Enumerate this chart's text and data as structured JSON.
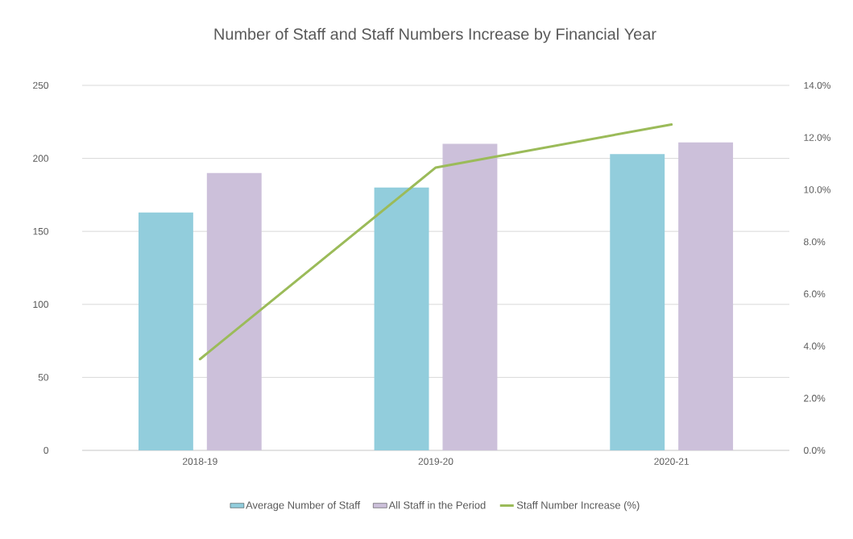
{
  "chart_data": {
    "type": "bar",
    "title": "Number of Staff and Staff Numbers Increase by Financial Year",
    "categories": [
      "2018-19",
      "2019-20",
      "2020-21"
    ],
    "series": [
      {
        "name": "Average Number of Staff",
        "color": "#92cddc",
        "values": [
          163,
          180,
          203
        ]
      },
      {
        "name": "All Staff in the Period",
        "color": "#ccc0da",
        "values": [
          190,
          210,
          211
        ]
      },
      {
        "name": "Staff Number Increase (%)",
        "type": "line",
        "axis": "y2",
        "color": "#9bbb59",
        "values": [
          3.5,
          10.85,
          12.5
        ]
      }
    ],
    "ylim": [
      0,
      250
    ],
    "yticks": [
      0,
      50,
      100,
      150,
      200,
      250
    ],
    "y2lim": [
      0,
      14
    ],
    "y2ticks": [
      {
        "value": 0,
        "label": "0.0%"
      },
      {
        "value": 2,
        "label": "2.0%"
      },
      {
        "value": 4,
        "label": "4.0%"
      },
      {
        "value": 6,
        "label": "6.0%"
      },
      {
        "value": 8,
        "label": "8.0%"
      },
      {
        "value": 10,
        "label": "10.0%"
      },
      {
        "value": 12,
        "label": "12.0%"
      },
      {
        "value": 14,
        "label": "14.0%"
      }
    ],
    "grid": "y",
    "legend": "bottom",
    "marker": "none",
    "line_style": "solid"
  }
}
